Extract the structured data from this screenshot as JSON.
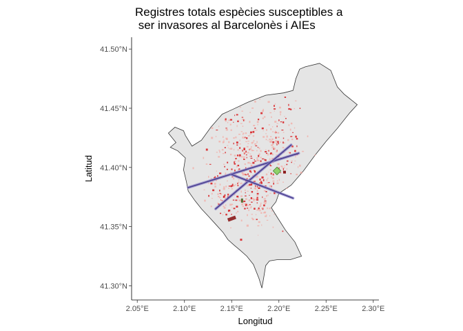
{
  "title_line1": "Registres totals espècies susceptibles a",
  "title_line2": " ser invasores al Barcelonès i AIEs",
  "chart_data": {
    "type": "scatter",
    "subtype": "map",
    "title": "Registres totals espècies susceptibles a ser invasores al Barcelonès i AIEs",
    "xlabel": "Longitud",
    "ylabel": "Latitud",
    "xlim": [
      2.044,
      2.306
    ],
    "ylim": [
      41.288,
      41.51
    ],
    "x_ticks": [
      2.05,
      2.1,
      2.15,
      2.2,
      2.25,
      2.3
    ],
    "x_tick_labels": [
      "2.05°E",
      "2.10°E",
      "2.15°E",
      "2.20°E",
      "2.25°E",
      "2.30°E"
    ],
    "y_ticks": [
      41.3,
      41.35,
      41.4,
      41.45,
      41.5
    ],
    "y_tick_labels": [
      "41.30°N",
      "41.35°N",
      "41.40°N",
      "41.45°N",
      "41.50°N"
    ],
    "grid": false,
    "colors": {
      "land": "#e5e5e5",
      "outline": "#333333",
      "records": "#d7191c",
      "records_light": "#f4a6a0",
      "corridor": "#4b3f8f",
      "green_area": "#8fd16b",
      "dark_record": "#8b1a1a"
    },
    "boundary": [
      [
        2.224,
        41.325
      ],
      [
        2.217,
        41.337
      ],
      [
        2.207,
        41.347
      ],
      [
        2.199,
        41.357
      ],
      [
        2.192,
        41.366
      ],
      [
        2.197,
        41.371
      ],
      [
        2.2,
        41.378
      ],
      [
        2.213,
        41.385
      ],
      [
        2.226,
        41.397
      ],
      [
        2.238,
        41.41
      ],
      [
        2.25,
        41.422
      ],
      [
        2.262,
        41.433
      ],
      [
        2.275,
        41.446
      ],
      [
        2.283,
        41.453
      ],
      [
        2.269,
        41.462
      ],
      [
        2.262,
        41.468
      ],
      [
        2.255,
        41.482
      ],
      [
        2.243,
        41.488
      ],
      [
        2.228,
        41.485
      ],
      [
        2.222,
        41.483
      ],
      [
        2.218,
        41.475
      ],
      [
        2.215,
        41.465
      ],
      [
        2.205,
        41.463
      ],
      [
        2.186,
        41.461
      ],
      [
        2.167,
        41.455
      ],
      [
        2.151,
        41.449
      ],
      [
        2.14,
        41.445
      ],
      [
        2.128,
        41.434
      ],
      [
        2.118,
        41.423
      ],
      [
        2.108,
        41.418
      ],
      [
        2.101,
        41.427
      ],
      [
        2.099,
        41.431
      ],
      [
        2.09,
        41.434
      ],
      [
        2.083,
        41.429
      ],
      [
        2.091,
        41.421
      ],
      [
        2.085,
        41.417
      ],
      [
        2.093,
        41.414
      ],
      [
        2.101,
        41.408
      ],
      [
        2.099,
        41.398
      ],
      [
        2.102,
        41.388
      ],
      [
        2.104,
        41.38
      ],
      [
        2.111,
        41.372
      ],
      [
        2.118,
        41.365
      ],
      [
        2.125,
        41.359
      ],
      [
        2.133,
        41.352
      ],
      [
        2.141,
        41.345
      ],
      [
        2.146,
        41.339
      ],
      [
        2.153,
        41.334
      ],
      [
        2.159,
        41.33
      ],
      [
        2.166,
        41.325
      ],
      [
        2.173,
        41.318
      ],
      [
        2.179,
        41.306
      ],
      [
        2.182,
        41.298
      ],
      [
        2.184,
        41.307
      ],
      [
        2.186,
        41.317
      ],
      [
        2.19,
        41.321
      ],
      [
        2.198,
        41.322
      ],
      [
        2.212,
        41.322
      ]
    ],
    "corridors": [
      {
        "x": [
          2.104,
          2.221
        ],
        "y": [
          41.383,
          41.412
        ]
      },
      {
        "x": [
          2.133,
          2.213
        ],
        "y": [
          41.365,
          41.419
        ]
      },
      {
        "x": [
          2.15,
          2.215
        ],
        "y": [
          41.394,
          41.374
        ]
      }
    ],
    "green_areas": [
      {
        "x": 2.198,
        "y": 41.397
      },
      {
        "x": 2.206,
        "y": 41.396
      }
    ],
    "record_clusters": [
      {
        "lon": 2.167,
        "lat": 41.395,
        "spread": 0.035,
        "count": 220
      },
      {
        "lon": 2.19,
        "lat": 41.41,
        "spread": 0.03,
        "count": 140
      },
      {
        "lon": 2.155,
        "lat": 41.425,
        "spread": 0.025,
        "count": 80
      },
      {
        "lon": 2.2,
        "lat": 41.44,
        "spread": 0.02,
        "count": 40
      },
      {
        "lon": 2.14,
        "lat": 41.38,
        "spread": 0.02,
        "count": 60
      },
      {
        "lon": 2.175,
        "lat": 41.37,
        "spread": 0.015,
        "count": 50
      }
    ]
  }
}
